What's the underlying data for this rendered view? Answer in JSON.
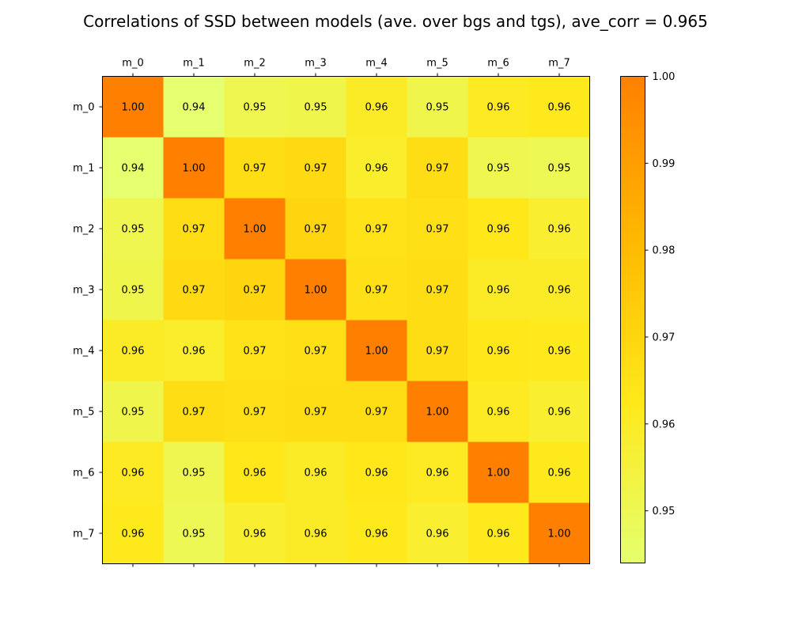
{
  "chart_data": {
    "type": "heatmap",
    "title": "Correlations of SSD between models (ave. over bgs and tgs), ave_corr = 0.965",
    "row_labels": [
      "m_0",
      "m_1",
      "m_2",
      "m_3",
      "m_4",
      "m_5",
      "m_6",
      "m_7"
    ],
    "col_labels": [
      "m_0",
      "m_1",
      "m_2",
      "m_3",
      "m_4",
      "m_5",
      "m_6",
      "m_7"
    ],
    "values": [
      [
        1.0,
        0.944,
        0.951,
        0.952,
        0.96,
        0.952,
        0.961,
        0.962
      ],
      [
        0.944,
        1.0,
        0.967,
        0.968,
        0.959,
        0.967,
        0.951,
        0.95
      ],
      [
        0.951,
        0.967,
        1.0,
        0.97,
        0.965,
        0.966,
        0.963,
        0.958
      ],
      [
        0.952,
        0.968,
        0.97,
        1.0,
        0.966,
        0.967,
        0.96,
        0.96
      ],
      [
        0.96,
        0.959,
        0.965,
        0.966,
        1.0,
        0.967,
        0.963,
        0.962
      ],
      [
        0.952,
        0.967,
        0.966,
        0.967,
        0.967,
        1.0,
        0.961,
        0.958
      ],
      [
        0.961,
        0.951,
        0.963,
        0.96,
        0.963,
        0.961,
        1.0,
        0.962
      ],
      [
        0.962,
        0.95,
        0.958,
        0.96,
        0.962,
        0.958,
        0.962,
        1.0
      ]
    ],
    "cell_labels": [
      [
        "1.00",
        "0.94",
        "0.95",
        "0.95",
        "0.96",
        "0.95",
        "0.96",
        "0.96"
      ],
      [
        "0.94",
        "1.00",
        "0.97",
        "0.97",
        "0.96",
        "0.97",
        "0.95",
        "0.95"
      ],
      [
        "0.95",
        "0.97",
        "1.00",
        "0.97",
        "0.97",
        "0.97",
        "0.96",
        "0.96"
      ],
      [
        "0.95",
        "0.97",
        "0.97",
        "1.00",
        "0.97",
        "0.97",
        "0.96",
        "0.96"
      ],
      [
        "0.96",
        "0.96",
        "0.97",
        "0.97",
        "1.00",
        "0.97",
        "0.96",
        "0.96"
      ],
      [
        "0.95",
        "0.97",
        "0.97",
        "0.97",
        "0.97",
        "1.00",
        "0.96",
        "0.96"
      ],
      [
        "0.96",
        "0.95",
        "0.96",
        "0.96",
        "0.96",
        "0.96",
        "1.00",
        "0.96"
      ],
      [
        "0.96",
        "0.95",
        "0.96",
        "0.96",
        "0.96",
        "0.96",
        "0.96",
        "1.00"
      ]
    ],
    "colorbar": {
      "range": [
        0.944,
        1.0
      ],
      "ticks": [
        0.95,
        0.96,
        0.97,
        0.98,
        0.99,
        1.0
      ],
      "tick_labels": [
        "0.95",
        "0.96",
        "0.97",
        "0.98",
        "0.99",
        "1.00"
      ],
      "colors": [
        "#e5ff6f",
        "#ffe81a",
        "#ffb800",
        "#ff8000"
      ]
    },
    "x_ticks_position": "top",
    "grid": false,
    "legend": "colorbar-right"
  }
}
